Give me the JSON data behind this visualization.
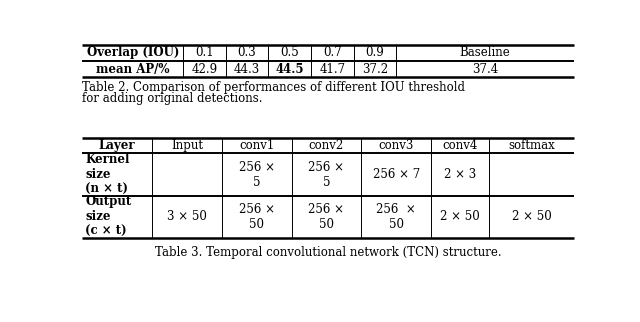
{
  "table1_headers": [
    "Overlap (IOU)",
    "0.1",
    "0.3",
    "0.5",
    "0.7",
    "0.9",
    "Baseline"
  ],
  "table1_row": [
    "mean AP/%",
    "42.9",
    "44.3",
    "44.5",
    "41.7",
    "37.2",
    "37.4"
  ],
  "table1_bold_data": [
    true,
    false,
    false,
    true,
    false,
    false,
    false
  ],
  "table1_caption_line1": "Table 2. Comparison of performances of different IOU threshold",
  "table1_caption_line2": "for adding original detections.",
  "table2_headers": [
    "Layer",
    "Input",
    "conv1",
    "conv2",
    "conv3",
    "conv4",
    "softmax"
  ],
  "table2_row1": [
    "Kernel\nsize\n(n × t)",
    "",
    "256 ×\n5",
    "256 ×\n5",
    "256 × 7",
    "2 × 3",
    ""
  ],
  "table2_row2": [
    "Output\nsize\n(c × t)",
    "3 × 50",
    "256 ×\n50",
    "256 ×\n50",
    "256  ×\n50",
    "2 × 50",
    "2 × 50"
  ],
  "table2_caption": "Table 3. Temporal convolutional network (TCN) structure.",
  "bg_color": "white",
  "text_color": "black"
}
